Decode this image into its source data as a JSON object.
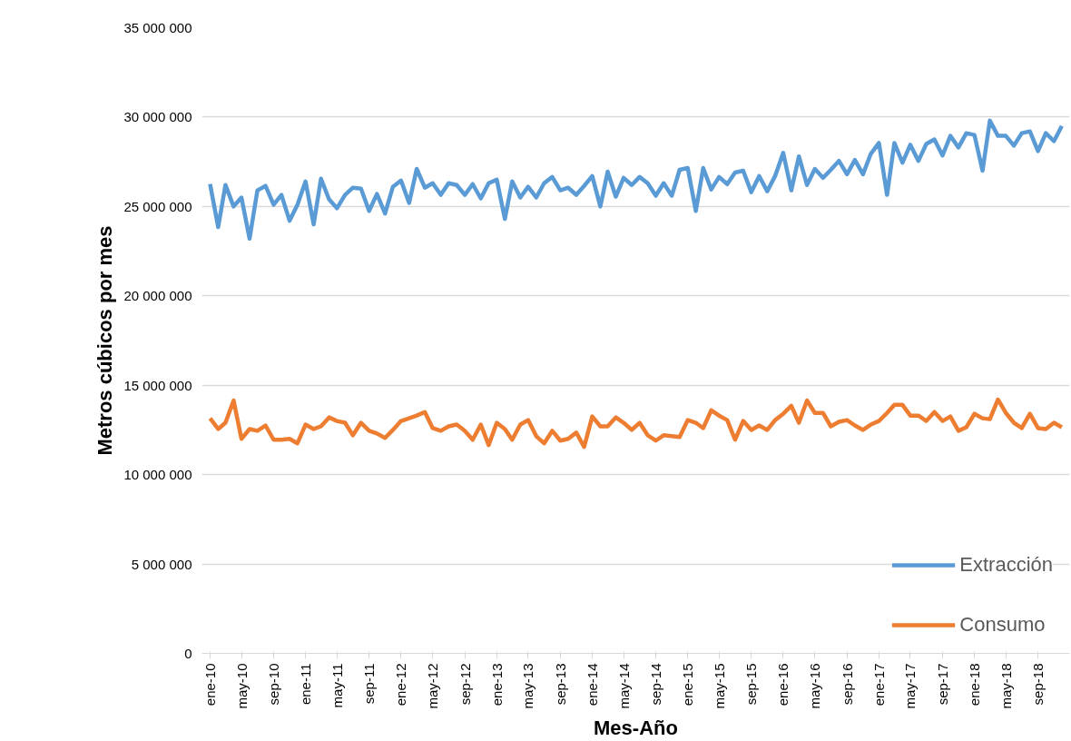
{
  "chart_data": {
    "type": "line",
    "xlabel": "Mes-Año",
    "ylabel": "Metros cúbicos por mes",
    "x": [
      "2010-01",
      "2010-02",
      "2010-03",
      "2010-04",
      "2010-05",
      "2010-06",
      "2010-07",
      "2010-08",
      "2010-09",
      "2010-10",
      "2010-11",
      "2010-12",
      "2011-01",
      "2011-02",
      "2011-03",
      "2011-04",
      "2011-05",
      "2011-06",
      "2011-07",
      "2011-08",
      "2011-09",
      "2011-10",
      "2011-11",
      "2011-12",
      "2012-01",
      "2012-02",
      "2012-03",
      "2012-04",
      "2012-05",
      "2012-06",
      "2012-07",
      "2012-08",
      "2012-09",
      "2012-10",
      "2012-11",
      "2012-12",
      "2013-01",
      "2013-02",
      "2013-03",
      "2013-04",
      "2013-05",
      "2013-06",
      "2013-07",
      "2013-08",
      "2013-09",
      "2013-10",
      "2013-11",
      "2013-12",
      "2014-01",
      "2014-02",
      "2014-03",
      "2014-04",
      "2014-05",
      "2014-06",
      "2014-07",
      "2014-08",
      "2014-09",
      "2014-10",
      "2014-11",
      "2014-12",
      "2015-01",
      "2015-02",
      "2015-03",
      "2015-04",
      "2015-05",
      "2015-06",
      "2015-07",
      "2015-08",
      "2015-09",
      "2015-10",
      "2015-11",
      "2015-12",
      "2016-01",
      "2016-02",
      "2016-03",
      "2016-04",
      "2016-05",
      "2016-06",
      "2016-07",
      "2016-08",
      "2016-09",
      "2016-10",
      "2016-11",
      "2016-12",
      "2017-01",
      "2017-02",
      "2017-03",
      "2017-04",
      "2017-05",
      "2017-06",
      "2017-07",
      "2017-08",
      "2017-09",
      "2017-10",
      "2017-11",
      "2017-12",
      "2018-01",
      "2018-02",
      "2018-03",
      "2018-04",
      "2018-05",
      "2018-06",
      "2018-07",
      "2018-08",
      "2018-09",
      "2018-10",
      "2018-11",
      "2018-12"
    ],
    "series": [
      {
        "name": "Extracción",
        "color": "#5b9bd5",
        "values": [
          26260000,
          23850000,
          26200000,
          25000000,
          25500000,
          23200000,
          25900000,
          26150000,
          25100000,
          25650000,
          24200000,
          25100000,
          26400000,
          24000000,
          26550000,
          25400000,
          24900000,
          25650000,
          26050000,
          26000000,
          24750000,
          25700000,
          24600000,
          26100000,
          26450000,
          25200000,
          27100000,
          26050000,
          26300000,
          25650000,
          26300000,
          26200000,
          25650000,
          26250000,
          25450000,
          26300000,
          26500000,
          24300000,
          26400000,
          25500000,
          26100000,
          25500000,
          26300000,
          26650000,
          25900000,
          26050000,
          25650000,
          26150000,
          26700000,
          25000000,
          26950000,
          25550000,
          26600000,
          26200000,
          26650000,
          26300000,
          25600000,
          26300000,
          25600000,
          27050000,
          27150000,
          24750000,
          27150000,
          25950000,
          26650000,
          26250000,
          26900000,
          27000000,
          25800000,
          26700000,
          25850000,
          26700000,
          28000000,
          25900000,
          27800000,
          26200000,
          27100000,
          26600000,
          27050000,
          27550000,
          26800000,
          27600000,
          26800000,
          27950000,
          28550000,
          25650000,
          28550000,
          27450000,
          28450000,
          27550000,
          28500000,
          28750000,
          27850000,
          28950000,
          28300000,
          29100000,
          29000000,
          27000000,
          29800000,
          28950000,
          28950000,
          28400000,
          29100000,
          29200000,
          28100000,
          29100000,
          28650000,
          29500000
        ]
      },
      {
        "name": "Consumo",
        "color": "#ed7d31",
        "values": [
          13150000,
          12550000,
          12900000,
          14150000,
          12000000,
          12550000,
          12450000,
          12750000,
          11950000,
          11950000,
          12000000,
          11750000,
          12800000,
          12550000,
          12700000,
          13200000,
          13000000,
          12900000,
          12200000,
          12900000,
          12450000,
          12300000,
          12050000,
          12500000,
          13000000,
          13150000,
          13300000,
          13500000,
          12600000,
          12450000,
          12700000,
          12800000,
          12450000,
          11950000,
          12800000,
          11650000,
          12900000,
          12550000,
          11950000,
          12800000,
          13050000,
          12150000,
          11750000,
          12450000,
          11900000,
          12000000,
          12350000,
          11550000,
          13250000,
          12700000,
          12700000,
          13200000,
          12900000,
          12500000,
          12900000,
          12200000,
          11900000,
          12200000,
          12150000,
          12100000,
          13050000,
          12900000,
          12600000,
          13600000,
          13300000,
          13050000,
          11950000,
          13000000,
          12500000,
          12750000,
          12500000,
          13050000,
          13400000,
          13850000,
          12900000,
          14150000,
          13450000,
          13450000,
          12700000,
          12950000,
          13050000,
          12750000,
          12500000,
          12800000,
          13000000,
          13450000,
          13900000,
          13900000,
          13300000,
          13300000,
          13000000,
          13500000,
          13000000,
          13250000,
          12450000,
          12650000,
          13400000,
          13150000,
          13100000,
          14200000,
          13450000,
          12900000,
          12600000,
          13400000,
          12600000,
          12550000,
          12900000,
          12650000
        ]
      }
    ],
    "xlim": [
      "2009-12-01",
      "2018-12-31"
    ],
    "xticks": [
      {
        "value": "2010-01",
        "label": "ene-10"
      },
      {
        "value": "2010-05",
        "label": "may-10"
      },
      {
        "value": "2010-09",
        "label": "sep-10"
      },
      {
        "value": "2011-01",
        "label": "ene-11"
      },
      {
        "value": "2011-05",
        "label": "may-11"
      },
      {
        "value": "2011-09",
        "label": "sep-11"
      },
      {
        "value": "2012-01",
        "label": "ene-12"
      },
      {
        "value": "2012-05",
        "label": "may-12"
      },
      {
        "value": "2012-09",
        "label": "sep-12"
      },
      {
        "value": "2013-01",
        "label": "ene-13"
      },
      {
        "value": "2013-05",
        "label": "may-13"
      },
      {
        "value": "2013-09",
        "label": "sep-13"
      },
      {
        "value": "2014-01",
        "label": "ene-14"
      },
      {
        "value": "2014-05",
        "label": "may-14"
      },
      {
        "value": "2014-09",
        "label": "sep-14"
      },
      {
        "value": "2015-01",
        "label": "ene-15"
      },
      {
        "value": "2015-05",
        "label": "may-15"
      },
      {
        "value": "2015-09",
        "label": "sep-15"
      },
      {
        "value": "2016-01",
        "label": "ene-16"
      },
      {
        "value": "2016-05",
        "label": "may-16"
      },
      {
        "value": "2016-09",
        "label": "sep-16"
      },
      {
        "value": "2017-01",
        "label": "ene-17"
      },
      {
        "value": "2017-05",
        "label": "may-17"
      },
      {
        "value": "2017-09",
        "label": "sep-17"
      },
      {
        "value": "2018-01",
        "label": "ene-18"
      },
      {
        "value": "2018-05",
        "label": "may-18"
      },
      {
        "value": "2018-09",
        "label": "sep-18"
      }
    ],
    "ylim": [
      0,
      35000000
    ],
    "yticks": [
      {
        "value": 0,
        "label": "0"
      },
      {
        "value": 5000000,
        "label": "5 000 000"
      },
      {
        "value": 10000000,
        "label": "10 000 000"
      },
      {
        "value": 15000000,
        "label": "15 000 000"
      },
      {
        "value": 20000000,
        "label": "20 000 000"
      },
      {
        "value": 25000000,
        "label": "25 000 000"
      },
      {
        "value": 30000000,
        "label": "30 000 000"
      },
      {
        "value": 35000000,
        "label": "35 000 000"
      }
    ],
    "grid": "y",
    "legend": "bottom right",
    "marker": "none",
    "line_style": "solid"
  }
}
